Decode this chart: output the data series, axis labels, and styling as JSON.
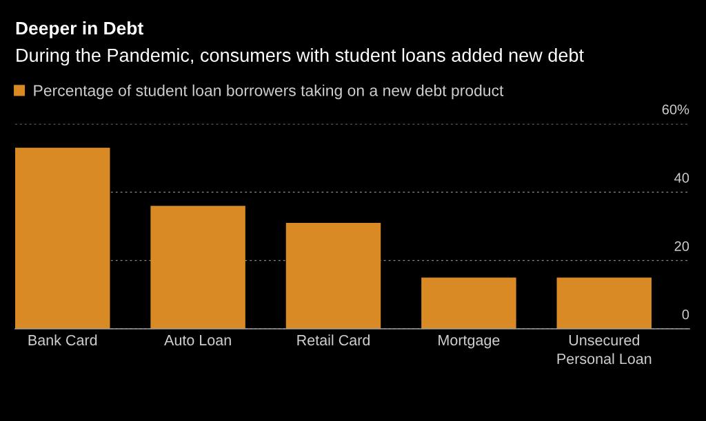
{
  "chart_data": {
    "type": "bar",
    "title": "Deeper in Debt",
    "subtitle": "During the Pandemic, consumers with student loans added new debt",
    "categories": [
      "Bank Card",
      "Auto Loan",
      "Retail Card",
      "Mortgage",
      "Unsecured Personal Loan"
    ],
    "series": [
      {
        "name": "Percentage of student loan borrowers taking on a new debt product",
        "color": "#da8a24",
        "values": [
          53,
          36,
          31,
          15,
          15
        ]
      }
    ],
    "ylim": [
      0,
      60
    ],
    "yticks": [
      0,
      20,
      40,
      {
        "value": 60,
        "label": "60%"
      }
    ],
    "grid": "y",
    "legend": "top left"
  }
}
